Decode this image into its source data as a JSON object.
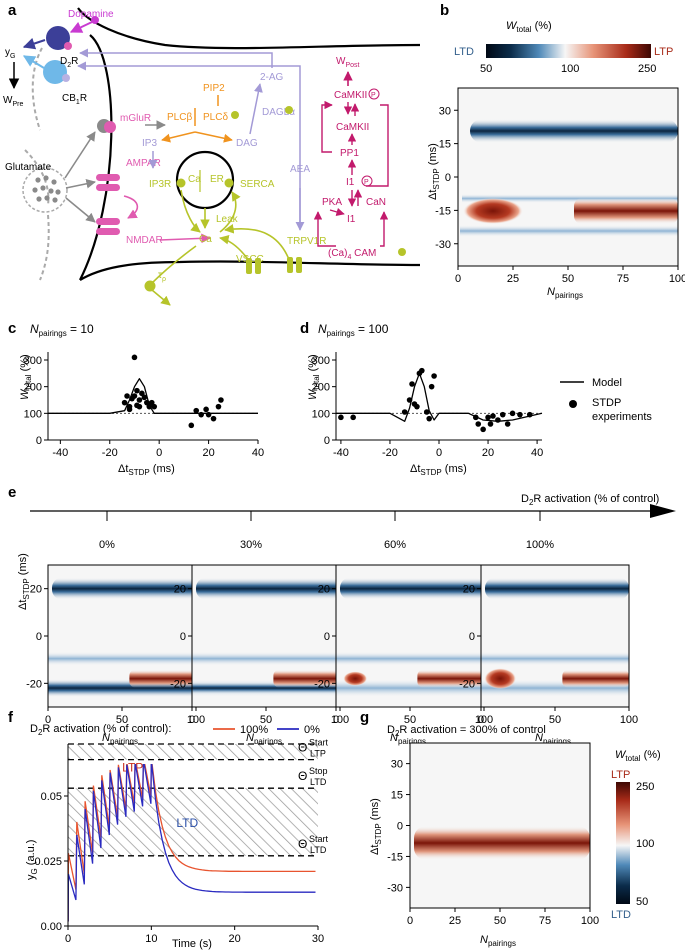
{
  "panels": {
    "a": "a",
    "b": "b",
    "c": "c",
    "d": "d",
    "e": "e",
    "f": "f",
    "g": "g"
  },
  "colors": {
    "ltp": "#8b1a10",
    "ltd": "#0b2c4a",
    "mid": "#f6f6f6",
    "pink": "#e05bb0",
    "magenta": "#c21a6c",
    "lav": "#a39ad6",
    "orange": "#f0931e",
    "olive": "#b6c42a",
    "dop": "#c93bd1",
    "navy": "#3c3f98",
    "skyblue": "#6fb8e8"
  },
  "panel_a": {
    "dopamine": "Dopamine",
    "d2r_base": "D",
    "d2r_sub": "2",
    "d2r_end": "R",
    "yg_base": "y",
    "yg_sub": "G",
    "wpre_base": "W",
    "wpre_sub": "Pre",
    "cb1r_base": "CB",
    "cb1r_sub": "1",
    "cb1r_end": "R",
    "glutamate": "Glutamate",
    "mglur": "mGluR",
    "ampar": "AMPAR",
    "nmdar": "NMDAR",
    "pip2": "PIP2",
    "plcb": "PLCβ",
    "plcd": "PLCδ",
    "ip3": "IP3",
    "dag": "DAG",
    "ag2": "2-AG",
    "daglalpha": "DAGLα",
    "ip3r": "IP3R",
    "ca_inner": "Ca",
    "er": "ER",
    "serca": "SERCA",
    "leak": "Leak",
    "ca": "Ca",
    "aea": "AEA",
    "trpv1r": "TRPV1R",
    "vscc": "VSCC",
    "tau_base": "τ",
    "tau_sub": "ρ",
    "wpost_base": "W",
    "wpost_sub": "Post",
    "camkiip": "CaMKII",
    "p_mark": "P",
    "camkii": "CaMKII",
    "pp1": "PP1",
    "i1p": "I1",
    "pka": "PKA",
    "can": "CaN",
    "i1": "I1",
    "ca4cam": "(Ca)",
    "ca4sub": "4",
    "cam": " CAM"
  },
  "panel_b": {
    "cbar_title_base": "W",
    "cbar_title_sub": "total",
    "cbar_title_end": " (%)",
    "ltd": "LTD",
    "ltp": "LTP",
    "cbar_ticks": [
      "50",
      "100",
      "250"
    ],
    "ylabel_base": "Δt",
    "ylabel_sub": "STDP",
    "ylabel_end": " (ms)",
    "xlabel_base": "N",
    "xlabel_sub": "pairings",
    "yticks": [
      "30",
      "15",
      "0",
      "-15",
      "-30"
    ],
    "xticks": [
      "0",
      "25",
      "50",
      "75",
      "100"
    ]
  },
  "panel_c": {
    "title_base": "N",
    "title_sub": "pairings",
    "title_end": " = 10"
  },
  "panel_d": {
    "title_base": "N",
    "title_sub": "pairings",
    "title_end": " = 100",
    "legend_model": "Model",
    "legend_stdp_1": "STDP",
    "legend_stdp_2": "experiments"
  },
  "panel_cd_axes": {
    "ylabel_base": "W",
    "ylabel_sub": "total",
    "ylabel_end": " (%)",
    "xlabel_base": "Δt",
    "xlabel_sub": "STDP",
    "xlabel_end": " (ms)",
    "yticks": [
      "300",
      "200",
      "100",
      "0"
    ],
    "xticks": [
      "-40",
      "-20",
      "0",
      "20",
      "40"
    ]
  },
  "panel_e": {
    "arrow_label_base": "D",
    "arrow_label_sub": "2",
    "arrow_label_end": "R activation (% of control)",
    "levels": [
      "0%",
      "30%",
      "60%",
      "100%"
    ],
    "ylabel_base": "Δt",
    "ylabel_sub": "STDP",
    "ylabel_end": " (ms)",
    "yticks": [
      "20",
      "0",
      "-20"
    ],
    "xticks": [
      "0",
      "50",
      "100"
    ],
    "xlabel_base": "N",
    "xlabel_sub": "pairings"
  },
  "panel_f": {
    "legend_title_base": "D",
    "legend_title_sub": "2",
    "legend_title_end": "R activation (% of control):",
    "legend_100": "100%",
    "legend_0": "0%",
    "ltp": "LTP",
    "ltd": "LTD",
    "theta_ltp_start": "Start",
    "theta_ltp_start_sub": "LTP",
    "theta_ltd_stop": "Stop",
    "theta_ltd_stop_sub": "LTD",
    "theta_ltd_start": "Start",
    "theta_ltd_start_sub": "LTD",
    "theta": "Θ",
    "ylabel_base": "y",
    "ylabel_sub": "G",
    "ylabel_end": " (a.u.)",
    "xlabel": "Time (s)",
    "yticks": [
      "0.00",
      "0.025",
      "0.05"
    ],
    "xticks": [
      "0",
      "10",
      "20",
      "30"
    ]
  },
  "panel_g": {
    "title_base": "D",
    "title_sub": "2",
    "title_end": "R  activation = 300% of control",
    "cbar_title_base": "W",
    "cbar_title_sub": "total",
    "cbar_title_end": " (%)",
    "ltp": "LTP",
    "ltd": "LTD",
    "cbar_ticks": [
      "250",
      "100",
      "50"
    ],
    "ylabel_base": "Δt",
    "ylabel_sub": "STDP",
    "ylabel_end": " (ms)",
    "yticks": [
      "30",
      "15",
      "0",
      "-15",
      "-30"
    ],
    "xticks": [
      "0",
      "25",
      "50",
      "75",
      "100"
    ],
    "xlabel_base": "N",
    "xlabel_sub": "pairings"
  },
  "chart_data": [
    {
      "type": "scatter",
      "panel": "c",
      "title": "Npairings = 10",
      "xlabel": "ΔtSTDP (ms)",
      "ylabel": "Wtotal (%)",
      "xlim": [
        -45,
        40
      ],
      "ylim": [
        0,
        330
      ],
      "series": [
        {
          "name": "STDP experiments",
          "points": [
            [
              -14,
              140
            ],
            [
              -13,
              165
            ],
            [
              -12,
              125
            ],
            [
              -11,
              155
            ],
            [
              -10,
              165
            ],
            [
              -10,
              310
            ],
            [
              -9,
              185
            ],
            [
              -8,
              150
            ],
            [
              -8,
              125
            ],
            [
              -7,
              175
            ],
            [
              -6,
              160
            ],
            [
              -5,
              140
            ],
            [
              -4,
              125
            ],
            [
              -3,
              140
            ],
            [
              -2,
              125
            ],
            [
              -9,
              130
            ],
            [
              -12,
              115
            ],
            [
              13,
              55
            ],
            [
              15,
              110
            ],
            [
              17,
              95
            ],
            [
              19,
              115
            ],
            [
              20,
              95
            ],
            [
              22,
              80
            ],
            [
              24,
              125
            ],
            [
              25,
              150
            ]
          ]
        },
        {
          "name": "Model",
          "x": [
            -45,
            -20,
            -14,
            -12,
            -10,
            -8,
            -6,
            -4,
            -2,
            0,
            40
          ],
          "y": [
            100,
            100,
            110,
            150,
            200,
            230,
            200,
            130,
            100,
            100,
            100
          ]
        }
      ],
      "reference_line": 100
    },
    {
      "type": "scatter",
      "panel": "d",
      "title": "Npairings = 100",
      "xlabel": "ΔtSTDP (ms)",
      "ylabel": "Wtotal (%)",
      "xlim": [
        -42,
        42
      ],
      "ylim": [
        0,
        330
      ],
      "series": [
        {
          "name": "STDP experiments",
          "points": [
            [
              -40,
              85
            ],
            [
              -35,
              85
            ],
            [
              -14,
              105
            ],
            [
              -12,
              150
            ],
            [
              -11,
              210
            ],
            [
              -10,
              135
            ],
            [
              -9,
              125
            ],
            [
              -8,
              250
            ],
            [
              -7,
              260
            ],
            [
              -5,
              105
            ],
            [
              -4,
              80
            ],
            [
              -3,
              200
            ],
            [
              -2,
              240
            ],
            [
              15,
              85
            ],
            [
              16,
              60
            ],
            [
              18,
              40
            ],
            [
              20,
              85
            ],
            [
              21,
              60
            ],
            [
              22,
              90
            ],
            [
              24,
              75
            ],
            [
              26,
              95
            ],
            [
              28,
              60
            ],
            [
              30,
              100
            ],
            [
              33,
              95
            ],
            [
              37,
              95
            ]
          ]
        },
        {
          "name": "Model",
          "x": [
            -42,
            -20,
            -14,
            -12,
            -10,
            -8,
            -6,
            -4,
            -2,
            0,
            12,
            18,
            24,
            30,
            42
          ],
          "y": [
            100,
            100,
            70,
            120,
            200,
            250,
            200,
            110,
            75,
            100,
            100,
            75,
            70,
            75,
            100
          ]
        }
      ],
      "reference_line": 100
    },
    {
      "type": "line",
      "panel": "f",
      "title": "D2R activation (% of control)",
      "xlabel": "Time (s)",
      "ylabel": "yG (a.u.)",
      "xlim": [
        0,
        30
      ],
      "ylim": [
        0,
        0.07
      ],
      "series": [
        {
          "name": "100%",
          "color": "#e8542f",
          "peaks": [
            0.028,
            0.04,
            0.048,
            0.054,
            0.058,
            0.06,
            0.062,
            0.063,
            0.064,
            0.065
          ],
          "final": 0.021
        },
        {
          "name": "0%",
          "color": "#2a2ac0",
          "peaks": [
            0.02,
            0.035,
            0.045,
            0.052,
            0.056,
            0.059,
            0.061,
            0.062,
            0.063,
            0.064
          ],
          "final": 0.013
        }
      ],
      "thresholds": {
        "theta_start_ltp": 0.064,
        "theta_stop_ltd": 0.053,
        "theta_start_ltd": 0.027
      }
    },
    {
      "type": "heatmap",
      "panel": "b",
      "xlabel": "Npairings",
      "ylabel": "ΔtSTDP (ms)",
      "xlim": [
        0,
        100
      ],
      "ylim": [
        -40,
        40
      ],
      "clim": [
        50,
        250
      ]
    },
    {
      "type": "heatmap",
      "panel": "e",
      "levels": [
        "0%",
        "30%",
        "60%",
        "100%"
      ],
      "xlim": [
        0,
        100
      ],
      "ylim": [
        -30,
        30
      ]
    },
    {
      "type": "heatmap",
      "panel": "g",
      "xlim": [
        0,
        100
      ],
      "ylim": [
        -40,
        40
      ],
      "clim": [
        50,
        250
      ]
    }
  ]
}
